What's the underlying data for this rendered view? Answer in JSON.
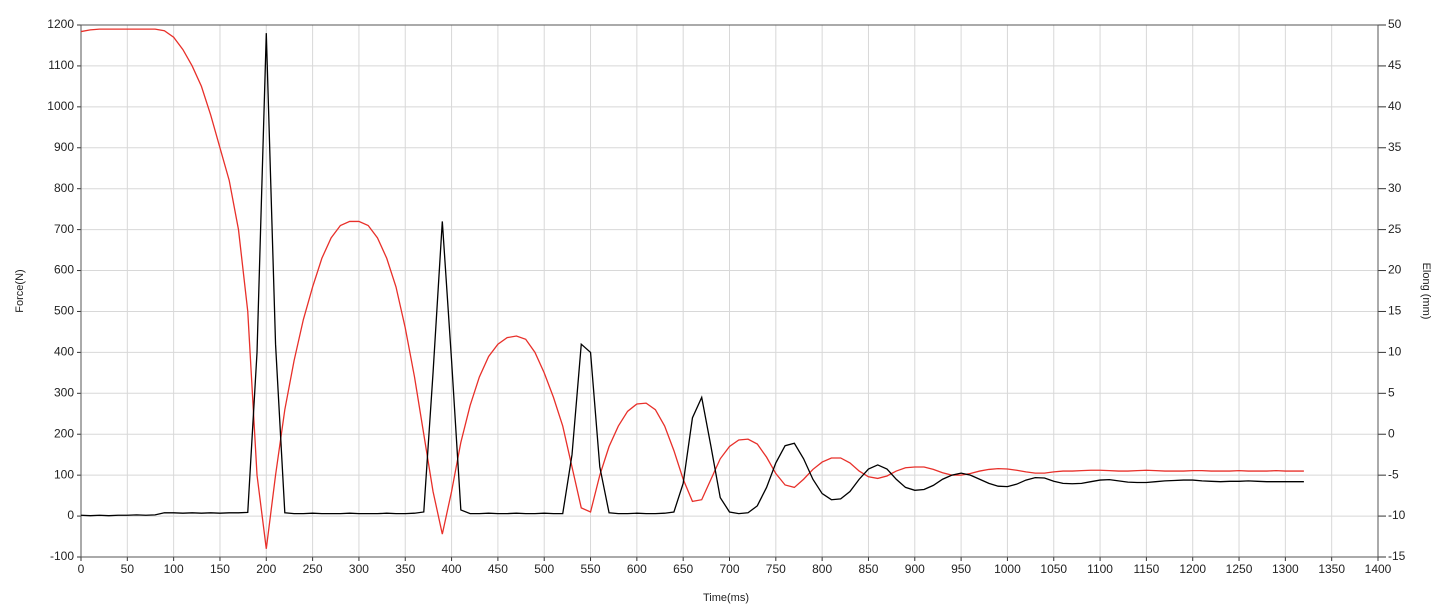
{
  "chart_data": {
    "type": "line",
    "xlabel": "Time(ms)",
    "ylabel": "Force(N)",
    "y2label": "Elong (mm)",
    "x": [
      0,
      10,
      20,
      30,
      40,
      50,
      60,
      70,
      80,
      90,
      100,
      110,
      120,
      130,
      140,
      150,
      160,
      170,
      180,
      190,
      200,
      210,
      220,
      230,
      240,
      250,
      260,
      270,
      280,
      290,
      300,
      310,
      320,
      330,
      340,
      350,
      360,
      370,
      380,
      390,
      400,
      410,
      420,
      430,
      440,
      450,
      460,
      470,
      480,
      490,
      500,
      510,
      520,
      530,
      540,
      550,
      560,
      570,
      580,
      590,
      600,
      610,
      620,
      630,
      640,
      650,
      660,
      670,
      680,
      690,
      700,
      710,
      720,
      730,
      740,
      750,
      760,
      770,
      780,
      790,
      800,
      810,
      820,
      830,
      840,
      850,
      860,
      870,
      880,
      890,
      900,
      910,
      920,
      930,
      940,
      950,
      960,
      970,
      980,
      990,
      1000,
      1010,
      1020,
      1030,
      1040,
      1050,
      1060,
      1070,
      1080,
      1090,
      1100,
      1110,
      1120,
      1130,
      1140,
      1150,
      1160,
      1170,
      1180,
      1190,
      1200,
      1210,
      1220,
      1230,
      1240,
      1250,
      1260,
      1270,
      1280,
      1290,
      1300,
      1310,
      1320
    ],
    "series": [
      {
        "color": "#000000",
        "values": [
          2,
          1,
          2,
          1,
          2,
          2,
          3,
          2,
          3,
          8,
          8,
          7,
          8,
          7,
          8,
          7,
          8,
          8,
          9,
          400,
          1180,
          420,
          8,
          6,
          6,
          7,
          6,
          6,
          6,
          7,
          6,
          6,
          6,
          7,
          6,
          6,
          7,
          10,
          350,
          720,
          380,
          15,
          6,
          6,
          7,
          6,
          6,
          7,
          6,
          6,
          7,
          6,
          6,
          150,
          420,
          400,
          120,
          8,
          6,
          6,
          7,
          6,
          6,
          7,
          10,
          80,
          240,
          290,
          170,
          45,
          10,
          6,
          8,
          25,
          70,
          130,
          172,
          178,
          140,
          90,
          55,
          40,
          42,
          60,
          90,
          115,
          125,
          115,
          90,
          70,
          63,
          65,
          75,
          90,
          100,
          105,
          100,
          90,
          80,
          73,
          72,
          78,
          88,
          94,
          93,
          85,
          80,
          79,
          80,
          84,
          88,
          89,
          86,
          83,
          82,
          82,
          84,
          86,
          87,
          88,
          88,
          86,
          85,
          84,
          85,
          85,
          86,
          85,
          84,
          84,
          84,
          84,
          84
        ]
      },
      {
        "color": "#e8302a",
        "axis": "y2",
        "values": [
          49.2,
          49.4,
          49.5,
          49.5,
          49.5,
          49.5,
          49.5,
          49.5,
          49.5,
          49.3,
          48.5,
          47,
          45,
          42.5,
          39,
          35,
          31,
          25,
          15,
          -5,
          -14,
          -5,
          3,
          9,
          14,
          18,
          21.5,
          24,
          25.5,
          26,
          26,
          25.5,
          24,
          21.5,
          18,
          13,
          7,
          0,
          -7,
          -12.2,
          -7,
          -1,
          3.5,
          7,
          9.5,
          11,
          11.8,
          12,
          11.6,
          10,
          7.5,
          4.5,
          1,
          -4,
          -9,
          -9.5,
          -5,
          -1.5,
          1,
          2.8,
          3.7,
          3.8,
          3,
          1,
          -2,
          -5.5,
          -8.2,
          -8,
          -5.5,
          -3,
          -1.5,
          -0.7,
          -0.6,
          -1.2,
          -2.8,
          -4.8,
          -6.2,
          -6.5,
          -5.5,
          -4.3,
          -3.4,
          -2.9,
          -2.9,
          -3.5,
          -4.5,
          -5.2,
          -5.4,
          -5.1,
          -4.5,
          -4.1,
          -4,
          -4,
          -4.3,
          -4.7,
          -5,
          -5,
          -4.8,
          -4.5,
          -4.3,
          -4.2,
          -4.25,
          -4.4,
          -4.6,
          -4.75,
          -4.75,
          -4.6,
          -4.5,
          -4.5,
          -4.45,
          -4.4,
          -4.4,
          -4.45,
          -4.5,
          -4.5,
          -4.45,
          -4.4,
          -4.45,
          -4.5,
          -4.5,
          -4.5,
          -4.45,
          -4.45,
          -4.5,
          -4.5,
          -4.5,
          -4.45,
          -4.5,
          -4.5,
          -4.5,
          -4.45,
          -4.5,
          -4.5,
          -4.5
        ]
      }
    ],
    "xlim": [
      0,
      1400
    ],
    "xticks": [
      0,
      50,
      100,
      150,
      200,
      250,
      300,
      350,
      400,
      450,
      500,
      550,
      600,
      650,
      700,
      750,
      800,
      850,
      900,
      950,
      1000,
      1050,
      1100,
      1150,
      1200,
      1250,
      1300,
      1350,
      1400
    ],
    "ylim": [
      -100,
      1200
    ],
    "yticks": [
      -100,
      0,
      100,
      200,
      300,
      400,
      500,
      600,
      700,
      800,
      900,
      1000,
      1100,
      1200
    ],
    "y2lim": [
      -15,
      50
    ],
    "y2ticks": [
      -15,
      -10,
      -5,
      0,
      5,
      10,
      15,
      20,
      25,
      30,
      35,
      40,
      45,
      50
    ],
    "grid": true
  }
}
